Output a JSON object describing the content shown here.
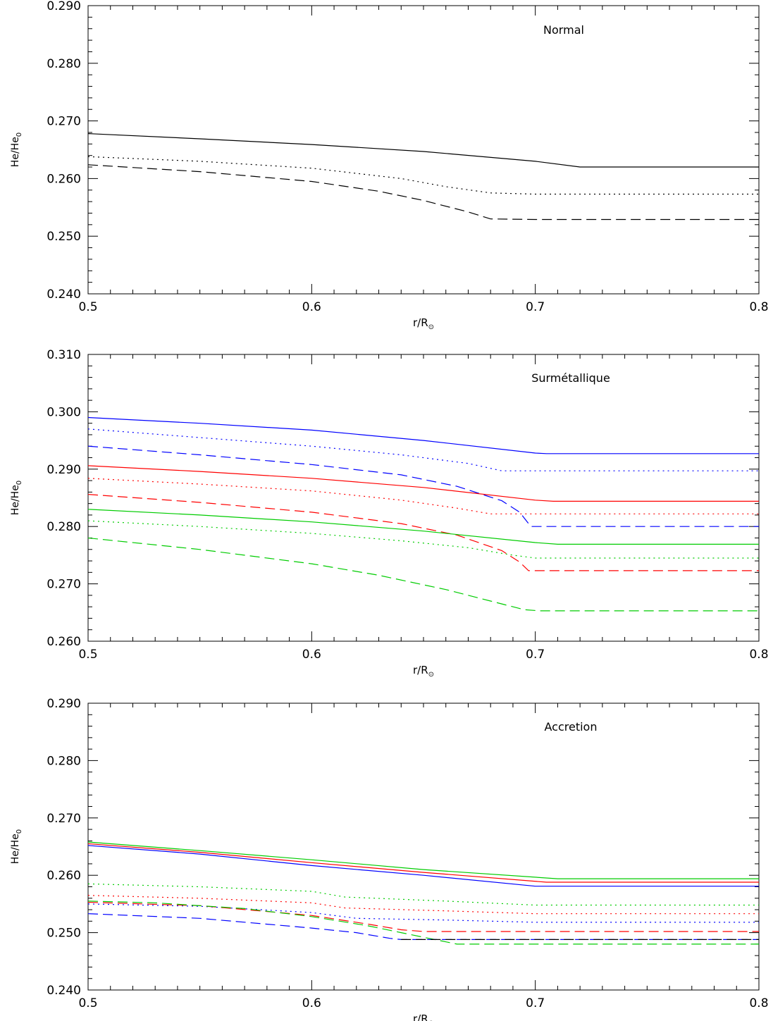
{
  "chart_data": [
    {
      "type": "line",
      "title": "Normal",
      "xlabel": "r/R",
      "xlabel_sub": "⊙",
      "ylabel": "He/He",
      "ylabel_sub": "0",
      "xlim": [
        0.5,
        0.8
      ],
      "ylim": [
        0.24,
        0.29
      ],
      "xticks": [
        "0.5",
        "0.6",
        "0.7",
        "0.8"
      ],
      "yticks": [
        "0.240",
        "0.250",
        "0.260",
        "0.270",
        "0.280",
        "0.290"
      ],
      "grid": false,
      "series": [
        {
          "color": "#000000",
          "style": "solid",
          "x": [
            0.5,
            0.55,
            0.6,
            0.65,
            0.7,
            0.72,
            0.8
          ],
          "y": [
            0.2678,
            0.2669,
            0.2659,
            0.2647,
            0.263,
            0.262,
            0.262
          ]
        },
        {
          "color": "#000000",
          "style": "dotted",
          "x": [
            0.5,
            0.55,
            0.6,
            0.64,
            0.66,
            0.68,
            0.7,
            0.72,
            0.8
          ],
          "y": [
            0.2638,
            0.263,
            0.2618,
            0.26,
            0.2586,
            0.2575,
            0.2573,
            0.2573,
            0.2573
          ]
        },
        {
          "color": "#000000",
          "style": "dashed",
          "x": [
            0.5,
            0.55,
            0.6,
            0.63,
            0.65,
            0.67,
            0.68,
            0.7,
            0.8
          ],
          "y": [
            0.2624,
            0.2612,
            0.2595,
            0.2578,
            0.2562,
            0.2542,
            0.253,
            0.2529,
            0.2529
          ]
        }
      ]
    },
    {
      "type": "line",
      "title": "Surmétallique",
      "xlabel": "r/R",
      "xlabel_sub": "⊙",
      "ylabel": "He/He",
      "ylabel_sub": "0",
      "xlim": [
        0.5,
        0.8
      ],
      "ylim": [
        0.26,
        0.31
      ],
      "xticks": [
        "0.5",
        "0.6",
        "0.7",
        "0.8"
      ],
      "yticks": [
        "0.260",
        "0.270",
        "0.280",
        "0.290",
        "0.300",
        "0.310"
      ],
      "grid": false,
      "series": [
        {
          "color": "#0000ff",
          "style": "solid",
          "x": [
            0.5,
            0.55,
            0.6,
            0.65,
            0.7,
            0.705,
            0.8
          ],
          "y": [
            0.299,
            0.298,
            0.2968,
            0.295,
            0.2928,
            0.2927,
            0.2927
          ]
        },
        {
          "color": "#0000ff",
          "style": "dotted",
          "x": [
            0.5,
            0.55,
            0.6,
            0.64,
            0.67,
            0.685,
            0.7,
            0.8
          ],
          "y": [
            0.297,
            0.2955,
            0.294,
            0.2925,
            0.291,
            0.2897,
            0.2897,
            0.2897
          ]
        },
        {
          "color": "#0000ff",
          "style": "dashed",
          "x": [
            0.5,
            0.55,
            0.6,
            0.64,
            0.665,
            0.685,
            0.693,
            0.698,
            0.7,
            0.8
          ],
          "y": [
            0.294,
            0.2925,
            0.2908,
            0.289,
            0.287,
            0.2845,
            0.2825,
            0.28,
            0.28,
            0.28
          ]
        },
        {
          "color": "#ff0000",
          "style": "solid",
          "x": [
            0.5,
            0.55,
            0.6,
            0.65,
            0.7,
            0.708,
            0.8
          ],
          "y": [
            0.2906,
            0.2896,
            0.2884,
            0.2868,
            0.2846,
            0.2844,
            0.2844
          ]
        },
        {
          "color": "#ff0000",
          "style": "dotted",
          "x": [
            0.5,
            0.55,
            0.6,
            0.64,
            0.665,
            0.68,
            0.7,
            0.8
          ],
          "y": [
            0.2884,
            0.2874,
            0.2862,
            0.2846,
            0.2832,
            0.2822,
            0.2822,
            0.2822
          ]
        },
        {
          "color": "#ff0000",
          "style": "dashed",
          "x": [
            0.5,
            0.55,
            0.6,
            0.64,
            0.665,
            0.685,
            0.693,
            0.697,
            0.8
          ],
          "y": [
            0.2856,
            0.2842,
            0.2825,
            0.2805,
            0.2785,
            0.2758,
            0.2738,
            0.2723,
            0.2723
          ]
        },
        {
          "color": "#00cc00",
          "style": "solid",
          "x": [
            0.5,
            0.55,
            0.6,
            0.65,
            0.7,
            0.71,
            0.8
          ],
          "y": [
            0.283,
            0.282,
            0.2808,
            0.2792,
            0.2772,
            0.2769,
            0.2769
          ]
        },
        {
          "color": "#00cc00",
          "style": "dotted",
          "x": [
            0.5,
            0.55,
            0.6,
            0.64,
            0.67,
            0.69,
            0.7,
            0.8
          ],
          "y": [
            0.281,
            0.28,
            0.2788,
            0.2775,
            0.2763,
            0.275,
            0.2745,
            0.2745
          ]
        },
        {
          "color": "#00cc00",
          "style": "dashed",
          "x": [
            0.5,
            0.55,
            0.6,
            0.63,
            0.66,
            0.68,
            0.695,
            0.702,
            0.8
          ],
          "y": [
            0.278,
            0.276,
            0.2735,
            0.2715,
            0.269,
            0.267,
            0.2655,
            0.2653,
            0.2653
          ]
        }
      ]
    },
    {
      "type": "line",
      "title": "Accretion",
      "xlabel": "r/R",
      "xlabel_sub": "⊙",
      "ylabel": "He/He",
      "ylabel_sub": "0",
      "xlim": [
        0.5,
        0.8
      ],
      "ylim": [
        0.24,
        0.29
      ],
      "xticks": [
        "0.5",
        "0.6",
        "0.7",
        "0.8"
      ],
      "yticks": [
        "0.240",
        "0.250",
        "0.260",
        "0.270",
        "0.280",
        "0.290"
      ],
      "grid": false,
      "series": [
        {
          "color": "#0000ff",
          "style": "solid",
          "x": [
            0.5,
            0.55,
            0.6,
            0.65,
            0.7,
            0.8
          ],
          "y": [
            0.2652,
            0.2637,
            0.2617,
            0.26,
            0.2581,
            0.2581
          ]
        },
        {
          "color": "#ff0000",
          "style": "solid",
          "x": [
            0.5,
            0.55,
            0.6,
            0.65,
            0.705,
            0.8
          ],
          "y": [
            0.2655,
            0.264,
            0.2622,
            0.2605,
            0.2588,
            0.2588
          ]
        },
        {
          "color": "#00cc00",
          "style": "solid",
          "x": [
            0.5,
            0.55,
            0.6,
            0.65,
            0.71,
            0.8
          ],
          "y": [
            0.2658,
            0.2643,
            0.2627,
            0.261,
            0.2594,
            0.2594
          ]
        },
        {
          "color": "#00cc00",
          "style": "dotted",
          "x": [
            0.5,
            0.55,
            0.6,
            0.615,
            0.66,
            0.7,
            0.8
          ],
          "y": [
            0.2585,
            0.258,
            0.2572,
            0.2562,
            0.2555,
            0.2548,
            0.2548
          ]
        },
        {
          "color": "#ff0000",
          "style": "dotted",
          "x": [
            0.5,
            0.55,
            0.6,
            0.615,
            0.66,
            0.7,
            0.8
          ],
          "y": [
            0.2565,
            0.256,
            0.2552,
            0.2543,
            0.2538,
            0.2533,
            0.2533
          ]
        },
        {
          "color": "#0000ff",
          "style": "dotted",
          "x": [
            0.5,
            0.55,
            0.6,
            0.62,
            0.66,
            0.7,
            0.8
          ],
          "y": [
            0.255,
            0.2546,
            0.2535,
            0.2525,
            0.2522,
            0.2518,
            0.2518
          ]
        },
        {
          "color": "#ff0000",
          "style": "dashed",
          "x": [
            0.5,
            0.55,
            0.6,
            0.625,
            0.64,
            0.65,
            0.8
          ],
          "y": [
            0.2553,
            0.2547,
            0.253,
            0.2515,
            0.2505,
            0.2502,
            0.2502
          ]
        },
        {
          "color": "#00cc00",
          "style": "dashed",
          "x": [
            0.5,
            0.53,
            0.57,
            0.6,
            0.625,
            0.64,
            0.655,
            0.665,
            0.8
          ],
          "y": [
            0.2555,
            0.2552,
            0.2542,
            0.2528,
            0.2512,
            0.25,
            0.2488,
            0.248,
            0.248
          ]
        },
        {
          "color": "#0000ff",
          "style": "dashed",
          "x": [
            0.5,
            0.55,
            0.6,
            0.62,
            0.635,
            0.64,
            0.8
          ],
          "y": [
            0.2533,
            0.2525,
            0.2508,
            0.25,
            0.249,
            0.2488,
            0.2488
          ]
        },
        {
          "color": "#000000",
          "style": "dashed",
          "x": [
            0.64,
            0.8
          ],
          "y": [
            0.2488,
            0.2488
          ]
        }
      ]
    }
  ]
}
